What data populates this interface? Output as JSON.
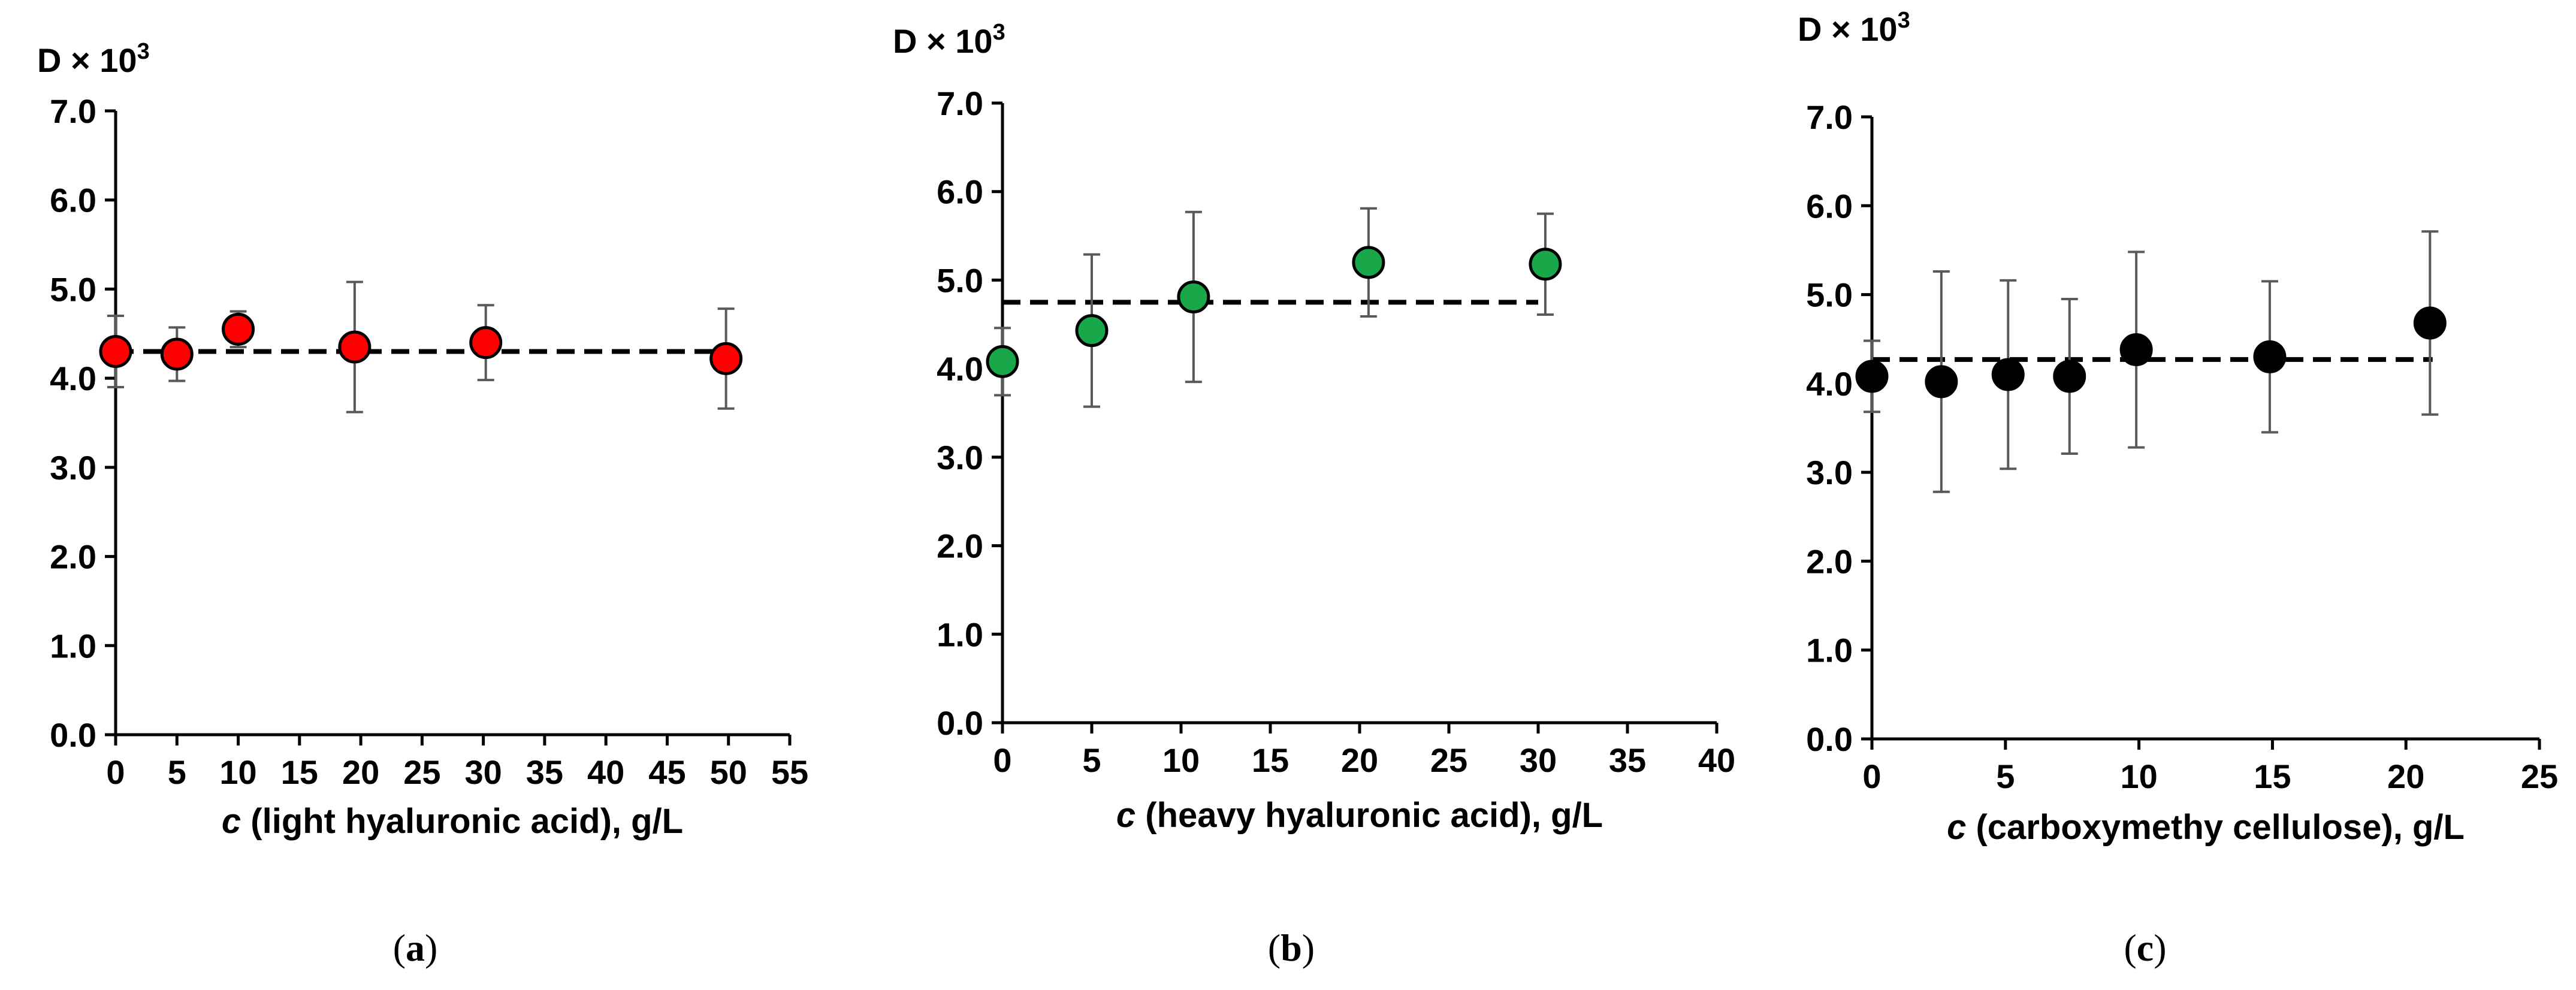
{
  "chart_data": [
    {
      "type": "scatter",
      "panel_label": "a",
      "ylabel": "D × 10",
      "ylabel_exp": "3",
      "xlabel_var": "c",
      "xlabel_rest": " (light hyaluronic acid), g/L",
      "xlim": [
        0,
        55
      ],
      "xticks": [
        0,
        5,
        10,
        15,
        20,
        25,
        30,
        35,
        40,
        45,
        50,
        55
      ],
      "ylim": [
        0.0,
        7.0
      ],
      "yticks": [
        "0.0",
        "1.0",
        "2.0",
        "3.0",
        "4.0",
        "5.0",
        "6.0",
        "7.0"
      ],
      "marker_color": "#ff0000",
      "points": [
        {
          "x": 0,
          "y": 4.3,
          "err": 0.4
        },
        {
          "x": 5,
          "y": 4.27,
          "err": 0.3
        },
        {
          "x": 10,
          "y": 4.55,
          "err": 0.2
        },
        {
          "x": 19.5,
          "y": 4.35,
          "err": 0.73
        },
        {
          "x": 30.2,
          "y": 4.4,
          "err": 0.42
        },
        {
          "x": 49.8,
          "y": 4.22,
          "err": 0.56
        }
      ],
      "trend": {
        "y": 4.3,
        "x_start": 0,
        "x_end": 50
      }
    },
    {
      "type": "scatter",
      "panel_label": "b",
      "ylabel": "D × 10",
      "ylabel_exp": "3",
      "xlabel_var": "c",
      "xlabel_rest": " (heavy hyaluronic acid), g/L",
      "xlim": [
        0,
        40
      ],
      "xticks": [
        0,
        5,
        10,
        15,
        20,
        25,
        30,
        35,
        40
      ],
      "ylim": [
        0.0,
        7.0
      ],
      "yticks": [
        "0.0",
        "1.0",
        "2.0",
        "3.0",
        "4.0",
        "5.0",
        "6.0",
        "7.0"
      ],
      "marker_color": "#18a84a",
      "points": [
        {
          "x": 0,
          "y": 4.08,
          "err": 0.38
        },
        {
          "x": 5,
          "y": 4.43,
          "err": 0.86
        },
        {
          "x": 10.7,
          "y": 4.81,
          "err": 0.96
        },
        {
          "x": 20.5,
          "y": 5.2,
          "err": 0.61
        },
        {
          "x": 30.4,
          "y": 5.18,
          "err": 0.57
        }
      ],
      "trend": {
        "y": 4.75,
        "x_start": 0,
        "x_end": 30
      }
    },
    {
      "type": "scatter",
      "panel_label": "c",
      "ylabel": "D × 10",
      "ylabel_exp": "3",
      "xlabel_var": "c",
      "xlabel_rest": " (carboxymethy cellulose), g/L",
      "xlim": [
        0,
        25
      ],
      "xticks": [
        0,
        5,
        10,
        15,
        20,
        25
      ],
      "ylim": [
        0.0,
        7.0
      ],
      "yticks": [
        "0.0",
        "1.0",
        "2.0",
        "3.0",
        "4.0",
        "5.0",
        "6.0",
        "7.0"
      ],
      "marker_color": "#000000",
      "points": [
        {
          "x": 0,
          "y": 4.08,
          "err": 0.4
        },
        {
          "x": 2.6,
          "y": 4.02,
          "err": 1.24
        },
        {
          "x": 5.1,
          "y": 4.1,
          "err": 1.06
        },
        {
          "x": 7.4,
          "y": 4.08,
          "err": 0.87
        },
        {
          "x": 9.9,
          "y": 4.38,
          "err": 1.1
        },
        {
          "x": 14.9,
          "y": 4.3,
          "err": 0.85
        },
        {
          "x": 20.9,
          "y": 4.68,
          "err": 1.03
        }
      ],
      "trend": {
        "y": 4.27,
        "x_start": 0,
        "x_end": 21
      }
    }
  ]
}
